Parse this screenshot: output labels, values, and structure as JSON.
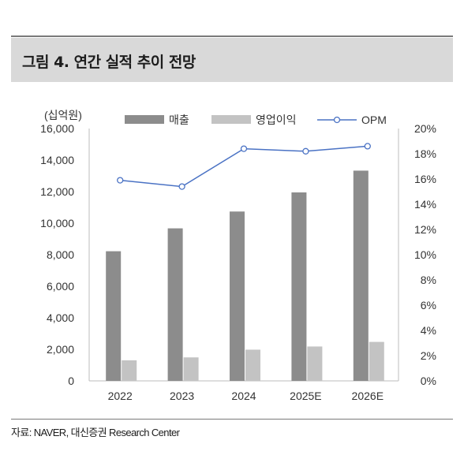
{
  "figure": {
    "title": "그림 4.  연간 실적 추이 전망",
    "source": "자료: NAVER, 대신증권 Research Center"
  },
  "chart_data": {
    "type": "bar",
    "categories": [
      "2022",
      "2023",
      "2024",
      "2025E",
      "2026E"
    ],
    "left_axis_unit": "(십억원)",
    "left_ylim": [
      0,
      16000
    ],
    "left_ticks": [
      "0",
      "2,000",
      "4,000",
      "6,000",
      "8,000",
      "10,000",
      "12,000",
      "14,000",
      "16,000"
    ],
    "right_ylim": [
      0,
      20
    ],
    "right_ticks": [
      "0%",
      "2%",
      "4%",
      "6%",
      "8%",
      "10%",
      "12%",
      "14%",
      "16%",
      "18%",
      "20%"
    ],
    "legend_position": "top",
    "series": [
      {
        "name": "매출",
        "kind": "bar",
        "axis": "left",
        "color": "#8c8c8c",
        "values": [
          8220,
          9671,
          10738,
          11950,
          13330
        ]
      },
      {
        "name": "영업이익",
        "kind": "bar",
        "axis": "left",
        "color": "#c3c3c3",
        "values": [
          1305,
          1489,
          1979,
          2180,
          2470
        ]
      },
      {
        "name": "OPM",
        "kind": "line",
        "axis": "right",
        "color": "#4a72c4",
        "values": [
          15.9,
          15.4,
          18.4,
          18.2,
          18.6
        ]
      }
    ]
  }
}
